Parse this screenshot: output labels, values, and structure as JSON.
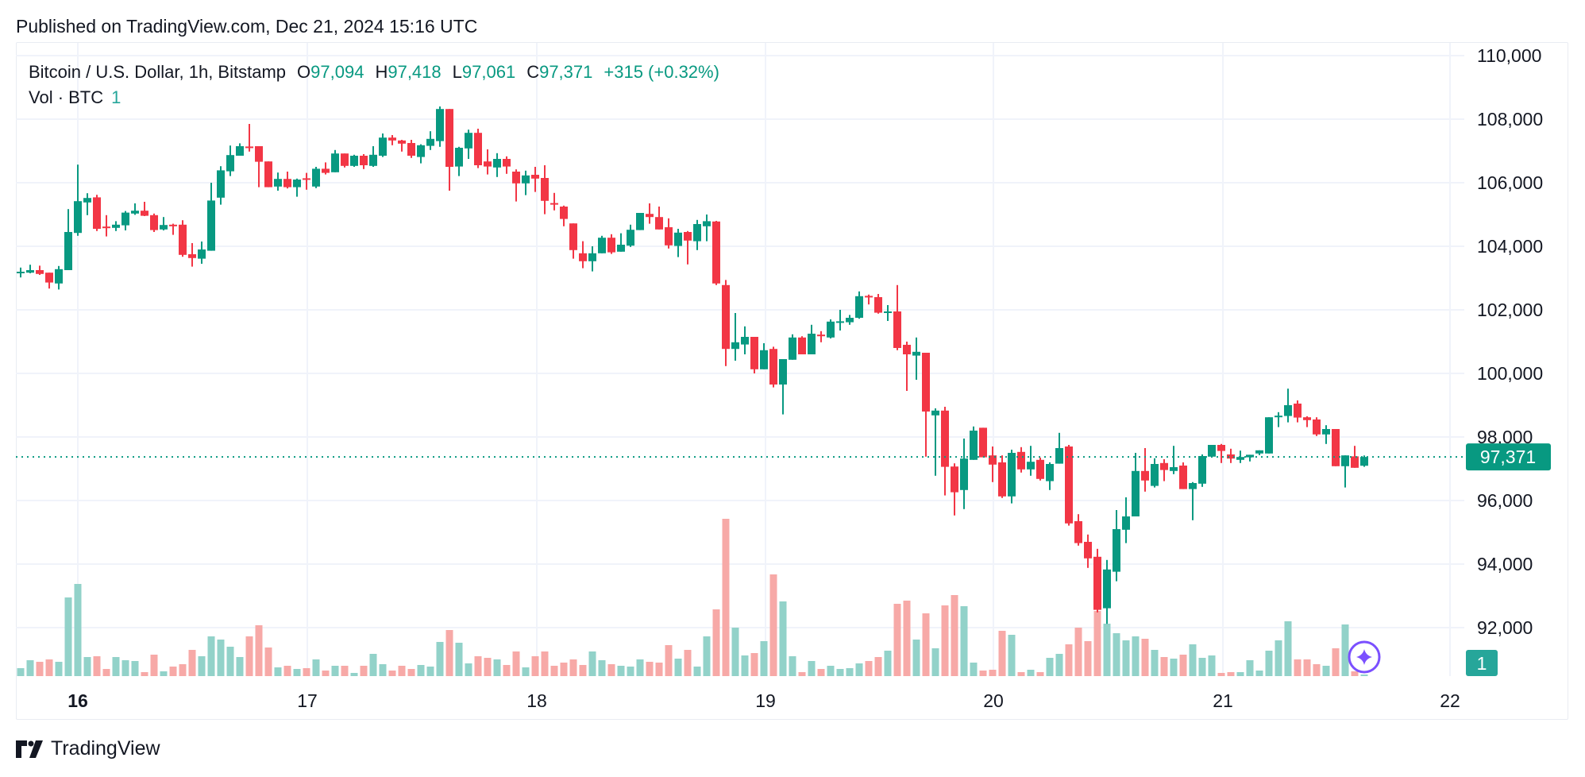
{
  "published": "Published on TradingView.com, Dec 21, 2024 15:16 UTC",
  "legend": {
    "symbol": "Bitcoin / U.S. Dollar, 1h, Bitstamp",
    "o_label": "O",
    "o_value": "97,094",
    "h_label": "H",
    "h_value": "97,418",
    "l_label": "L",
    "l_value": "97,061",
    "c_label": "C",
    "c_value": "97,371",
    "change": "+315 (+0.32%)",
    "vol_label": "Vol · BTC",
    "vol_value": "1"
  },
  "footer": {
    "brand": "TradingView",
    "logo_icon": "tradingview-logo-icon"
  },
  "assistant_icon": "sparkle-icon",
  "colors": {
    "up": "#089981",
    "down": "#F23645",
    "vol_up": "#92D2C9",
    "vol_down": "#F7A9A7",
    "price_tag": "#089981",
    "vol_tag": "#26A69A",
    "assistant": "#7B50FF"
  },
  "chart_data": {
    "type": "candlestick",
    "interval": "1h",
    "ylim": [
      90500,
      110000
    ],
    "grid": true,
    "y_ticks": [
      "110,000",
      "108,000",
      "106,000",
      "104,000",
      "102,000",
      "100,000",
      "98,000",
      "96,000",
      "94,000",
      "92,000"
    ],
    "y_tick_values": [
      110000,
      108000,
      106000,
      104000,
      102000,
      100000,
      98000,
      96000,
      94000,
      92000
    ],
    "x_ticks": [
      "16",
      "17",
      "18",
      "19",
      "20",
      "21",
      "22"
    ],
    "last_price": 97371,
    "last_price_label": "97,371",
    "volume_tag_label": "1",
    "candle_fields": [
      "open",
      "high",
      "low",
      "close",
      "volume_relative"
    ],
    "candles": [
      [
        103180,
        103330,
        103020,
        103200,
        30
      ],
      [
        103170,
        103420,
        103150,
        103250,
        60
      ],
      [
        103250,
        103390,
        103100,
        103130,
        54
      ],
      [
        103170,
        103170,
        102670,
        102860,
        63
      ],
      [
        102830,
        103380,
        102640,
        103280,
        54
      ],
      [
        103250,
        105170,
        103250,
        104450,
        297
      ],
      [
        104420,
        106570,
        104330,
        105420,
        348
      ],
      [
        105380,
        105670,
        104980,
        105520,
        72
      ],
      [
        105540,
        105620,
        104480,
        104550,
        75
      ],
      [
        104620,
        104980,
        104310,
        104590,
        27
      ],
      [
        104580,
        104790,
        104480,
        104680,
        72
      ],
      [
        104660,
        105110,
        104500,
        105060,
        60
      ],
      [
        105030,
        105350,
        104990,
        105120,
        57
      ],
      [
        105120,
        105400,
        104950,
        104960,
        15
      ],
      [
        104980,
        105030,
        104450,
        104510,
        81
      ],
      [
        104530,
        104920,
        104500,
        104670,
        18
      ],
      [
        104680,
        104710,
        104360,
        104650,
        36
      ],
      [
        104680,
        104820,
        103670,
        103730,
        45
      ],
      [
        103750,
        104100,
        103360,
        103630,
        99
      ],
      [
        103610,
        104150,
        103450,
        103900,
        75
      ],
      [
        103860,
        106000,
        103860,
        105440,
        150
      ],
      [
        105530,
        106520,
        105310,
        106390,
        138
      ],
      [
        106360,
        107170,
        106210,
        106870,
        111
      ],
      [
        106850,
        107240,
        106850,
        107150,
        72
      ],
      [
        107140,
        107850,
        106980,
        107110,
        150
      ],
      [
        107150,
        107150,
        105860,
        106660,
        192
      ],
      [
        106670,
        106670,
        105860,
        105860,
        108
      ],
      [
        105880,
        106320,
        105750,
        106120,
        33
      ],
      [
        106120,
        106350,
        105820,
        105860,
        39
      ],
      [
        105860,
        106130,
        105560,
        106100,
        27
      ],
      [
        106140,
        106310,
        105780,
        106100,
        30
      ],
      [
        105880,
        106500,
        105830,
        106440,
        63
      ],
      [
        106440,
        106640,
        106260,
        106310,
        21
      ],
      [
        106330,
        107030,
        106330,
        106920,
        39
      ],
      [
        106920,
        106920,
        106480,
        106530,
        39
      ],
      [
        106530,
        106880,
        106500,
        106850,
        12
      ],
      [
        106850,
        106900,
        106430,
        106550,
        39
      ],
      [
        106530,
        107150,
        106500,
        106880,
        84
      ],
      [
        106850,
        107550,
        106810,
        107420,
        45
      ],
      [
        107420,
        107500,
        107180,
        107330,
        21
      ],
      [
        107330,
        107350,
        106980,
        107230,
        39
      ],
      [
        107250,
        107350,
        106780,
        106850,
        27
      ],
      [
        106810,
        107210,
        106610,
        107180,
        42
      ],
      [
        107160,
        107620,
        107030,
        107380,
        36
      ],
      [
        107310,
        108400,
        107130,
        108320,
        129
      ],
      [
        108320,
        108320,
        105750,
        106500,
        174
      ],
      [
        106510,
        107130,
        106210,
        107100,
        126
      ],
      [
        107080,
        107670,
        106750,
        107570,
        48
      ],
      [
        107570,
        107700,
        106460,
        106550,
        75
      ],
      [
        106670,
        107050,
        106260,
        106510,
        69
      ],
      [
        106480,
        106930,
        106180,
        106750,
        63
      ],
      [
        106750,
        106830,
        106280,
        106510,
        42
      ],
      [
        106350,
        106420,
        105410,
        105980,
        93
      ],
      [
        105980,
        106380,
        105610,
        106230,
        33
      ],
      [
        106250,
        106500,
        105710,
        106130,
        75
      ],
      [
        106150,
        106550,
        105010,
        105430,
        93
      ],
      [
        105360,
        105680,
        105130,
        105350,
        39
      ],
      [
        105250,
        105280,
        104630,
        104860,
        51
      ],
      [
        104720,
        104720,
        103610,
        103880,
        63
      ],
      [
        103780,
        104160,
        103310,
        103530,
        42
      ],
      [
        103530,
        104000,
        103210,
        103780,
        93
      ],
      [
        103780,
        104330,
        103780,
        104270,
        60
      ],
      [
        104270,
        104380,
        103760,
        103810,
        45
      ],
      [
        103830,
        104410,
        103830,
        104050,
        39
      ],
      [
        104020,
        104680,
        103980,
        104520,
        36
      ],
      [
        104510,
        105050,
        104510,
        105050,
        63
      ],
      [
        105020,
        105350,
        104710,
        104920,
        54
      ],
      [
        104920,
        105250,
        104530,
        104530,
        51
      ],
      [
        104600,
        104880,
        103930,
        104030,
        117
      ],
      [
        104010,
        104550,
        103660,
        104430,
        66
      ],
      [
        104450,
        104480,
        103430,
        104180,
        99
      ],
      [
        104160,
        104830,
        103880,
        104700,
        36
      ],
      [
        104630,
        105000,
        104160,
        104790,
        150
      ],
      [
        104780,
        104800,
        102780,
        102830,
        252
      ],
      [
        102780,
        102940,
        100230,
        100770,
        594
      ],
      [
        100770,
        101900,
        100400,
        100980,
        183
      ],
      [
        100910,
        101480,
        100600,
        101150,
        78
      ],
      [
        101150,
        101150,
        100000,
        100130,
        87
      ],
      [
        100130,
        100950,
        100130,
        100730,
        132
      ],
      [
        100770,
        100840,
        99560,
        99650,
        384
      ],
      [
        99650,
        100450,
        98710,
        100450,
        282
      ],
      [
        100430,
        101230,
        100430,
        101130,
        75
      ],
      [
        101130,
        101170,
        100600,
        100600,
        15
      ],
      [
        100600,
        101530,
        100600,
        101250,
        57
      ],
      [
        101220,
        101330,
        100980,
        101180,
        27
      ],
      [
        101130,
        101700,
        101100,
        101630,
        39
      ],
      [
        101630,
        102000,
        101350,
        101640,
        27
      ],
      [
        101610,
        101840,
        101530,
        101750,
        30
      ],
      [
        101750,
        102580,
        101720,
        102430,
        48
      ],
      [
        102440,
        102480,
        102170,
        102420,
        57
      ],
      [
        102400,
        102500,
        101880,
        101910,
        72
      ],
      [
        101930,
        102150,
        101650,
        101950,
        96
      ],
      [
        101950,
        102780,
        100730,
        100800,
        273
      ],
      [
        100900,
        101000,
        99450,
        100600,
        285
      ],
      [
        100560,
        101130,
        99800,
        100680,
        138
      ],
      [
        100650,
        100650,
        97380,
        98800,
        237
      ],
      [
        98680,
        98900,
        96780,
        98830,
        105
      ],
      [
        98830,
        98950,
        96160,
        97060,
        267
      ],
      [
        97070,
        97170,
        95530,
        96260,
        306
      ],
      [
        96330,
        97950,
        95730,
        97320,
        264
      ],
      [
        97280,
        98330,
        97280,
        98200,
        51
      ],
      [
        98290,
        98290,
        97360,
        97360,
        21
      ],
      [
        97420,
        97700,
        96580,
        97130,
        24
      ],
      [
        97200,
        97420,
        96080,
        96130,
        171
      ],
      [
        96130,
        97600,
        95910,
        97500,
        156
      ],
      [
        97530,
        97680,
        96880,
        96980,
        15
      ],
      [
        96980,
        97720,
        96780,
        97220,
        24
      ],
      [
        97280,
        97350,
        96630,
        96680,
        15
      ],
      [
        96610,
        97200,
        96330,
        97150,
        69
      ],
      [
        97160,
        98130,
        97160,
        97650,
        84
      ],
      [
        97700,
        97750,
        95210,
        95280,
        120
      ],
      [
        95350,
        95570,
        94580,
        94660,
        183
      ],
      [
        94700,
        94930,
        93880,
        94180,
        132
      ],
      [
        94230,
        94480,
        92480,
        92560,
        246
      ],
      [
        92610,
        94130,
        92120,
        93830,
        198
      ],
      [
        93760,
        95700,
        93460,
        95100,
        162
      ],
      [
        95080,
        96100,
        94660,
        95500,
        135
      ],
      [
        95500,
        97500,
        95500,
        96930,
        150
      ],
      [
        96930,
        97650,
        96280,
        96630,
        141
      ],
      [
        96460,
        97330,
        96410,
        97150,
        99
      ],
      [
        97180,
        97300,
        96610,
        96960,
        72
      ],
      [
        96930,
        97720,
        96830,
        97050,
        66
      ],
      [
        97100,
        97200,
        96360,
        96360,
        81
      ],
      [
        96360,
        96580,
        95380,
        96550,
        120
      ],
      [
        96530,
        97450,
        96430,
        97400,
        69
      ],
      [
        97380,
        97750,
        97380,
        97750,
        78
      ],
      [
        97750,
        97780,
        97180,
        97560,
        12
      ],
      [
        97450,
        97630,
        97180,
        97320,
        15
      ],
      [
        97280,
        97570,
        97180,
        97370,
        15
      ],
      [
        97360,
        97440,
        97230,
        97440,
        60
      ],
      [
        97480,
        97580,
        97430,
        97580,
        21
      ],
      [
        97480,
        98620,
        97480,
        98620,
        96
      ],
      [
        98630,
        98780,
        98310,
        98670,
        135
      ],
      [
        98660,
        99520,
        98460,
        99000,
        207
      ],
      [
        99050,
        99150,
        98460,
        98610,
        63
      ],
      [
        98620,
        98650,
        98310,
        98530,
        63
      ],
      [
        98550,
        98620,
        98030,
        98080,
        45
      ],
      [
        98080,
        98370,
        97780,
        98250,
        39
      ],
      [
        98250,
        98250,
        97080,
        97080,
        105
      ],
      [
        97080,
        97420,
        96410,
        97420,
        195
      ],
      [
        97390,
        97720,
        97030,
        97030,
        18
      ],
      [
        97094,
        97418,
        97061,
        97371,
        6
      ]
    ]
  }
}
